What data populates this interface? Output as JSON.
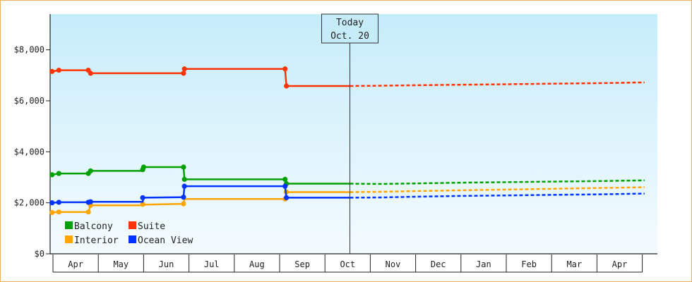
{
  "chart_data": {
    "type": "line",
    "title": "",
    "xlabel": "",
    "ylabel": "",
    "ylim": [
      0,
      9400
    ],
    "y_ticks": [
      {
        "value": 0,
        "label": "$0"
      },
      {
        "value": 2000,
        "label": "$2,000"
      },
      {
        "value": 4000,
        "label": "$4,000"
      },
      {
        "value": 6000,
        "label": "$6,000"
      },
      {
        "value": 8000,
        "label": "$8,000"
      }
    ],
    "x_months": [
      "Apr",
      "May",
      "Jun",
      "Jul",
      "Aug",
      "Sep",
      "Oct",
      "Nov",
      "Dec",
      "Jan",
      "Feb",
      "Mar",
      "Apr"
    ],
    "x_range_months": [
      -0.05,
      13.05
    ],
    "today": {
      "line1": "Today",
      "line2": "Oct. 20",
      "x": 6.55
    },
    "grid": false,
    "legend_position": "bottom-left",
    "series": [
      {
        "name": "Balcony",
        "color": "#00a000",
        "history": [
          [
            -0.02,
            3100
          ],
          [
            0.13,
            3150
          ],
          [
            0.78,
            3150
          ],
          [
            0.83,
            3250
          ],
          [
            1.98,
            3250
          ],
          [
            2.0,
            3400
          ],
          [
            2.88,
            3400
          ],
          [
            2.9,
            2920
          ],
          [
            5.12,
            2920
          ],
          [
            5.15,
            2750
          ],
          [
            6.55,
            2750
          ]
        ],
        "history_points": [
          [
            -0.02,
            3100
          ],
          [
            0.13,
            3150
          ],
          [
            0.78,
            3150
          ],
          [
            0.83,
            3250
          ],
          [
            1.98,
            3300
          ],
          [
            2.0,
            3400
          ],
          [
            2.88,
            3400
          ],
          [
            2.9,
            2920
          ],
          [
            5.12,
            2920
          ],
          [
            5.15,
            2750
          ]
        ],
        "forecast": [
          [
            6.55,
            2750
          ],
          [
            7.2,
            2740
          ],
          [
            8.0,
            2760
          ],
          [
            9.0,
            2790
          ],
          [
            10.0,
            2810
          ],
          [
            11.0,
            2830
          ],
          [
            12.0,
            2850
          ],
          [
            13.05,
            2880
          ]
        ]
      },
      {
        "name": "Suite",
        "color": "#ff3300",
        "history": [
          [
            -0.02,
            7150
          ],
          [
            0.13,
            7200
          ],
          [
            0.78,
            7200
          ],
          [
            0.83,
            7080
          ],
          [
            2.88,
            7080
          ],
          [
            2.9,
            7250
          ],
          [
            5.12,
            7250
          ],
          [
            5.15,
            6580
          ],
          [
            6.55,
            6580
          ]
        ],
        "history_points": [
          [
            -0.02,
            7150
          ],
          [
            0.13,
            7200
          ],
          [
            0.78,
            7200
          ],
          [
            0.83,
            7080
          ],
          [
            2.88,
            7080
          ],
          [
            2.9,
            7250
          ],
          [
            5.12,
            7250
          ],
          [
            5.15,
            6580
          ]
        ],
        "forecast": [
          [
            6.55,
            6580
          ],
          [
            7.2,
            6590
          ],
          [
            8.0,
            6610
          ],
          [
            9.0,
            6630
          ],
          [
            10.0,
            6650
          ],
          [
            11.0,
            6670
          ],
          [
            12.0,
            6690
          ],
          [
            13.05,
            6720
          ]
        ]
      },
      {
        "name": "Interior",
        "color": "#ffa500",
        "history": [
          [
            -0.02,
            1620
          ],
          [
            0.13,
            1640
          ],
          [
            0.78,
            1640
          ],
          [
            0.83,
            1900
          ],
          [
            1.98,
            1900
          ],
          [
            2.0,
            1930
          ],
          [
            2.88,
            1960
          ],
          [
            2.9,
            2150
          ],
          [
            5.12,
            2150
          ],
          [
            5.15,
            2420
          ],
          [
            6.55,
            2420
          ]
        ],
        "history_points": [
          [
            -0.02,
            1620
          ],
          [
            0.13,
            1640
          ],
          [
            0.78,
            1640
          ],
          [
            0.83,
            1900
          ],
          [
            1.98,
            1940
          ],
          [
            2.88,
            1960
          ],
          [
            5.12,
            2150
          ],
          [
            5.15,
            2420
          ]
        ],
        "forecast": [
          [
            6.55,
            2420
          ],
          [
            7.2,
            2430
          ],
          [
            8.0,
            2460
          ],
          [
            9.0,
            2490
          ],
          [
            10.0,
            2520
          ],
          [
            11.0,
            2550
          ],
          [
            12.0,
            2580
          ],
          [
            13.05,
            2610
          ]
        ]
      },
      {
        "name": "Ocean View",
        "color": "#0033ff",
        "history": [
          [
            -0.02,
            2000
          ],
          [
            0.13,
            2020
          ],
          [
            0.78,
            2020
          ],
          [
            0.83,
            2040
          ],
          [
            1.98,
            2040
          ],
          [
            2.0,
            2200
          ],
          [
            2.88,
            2220
          ],
          [
            2.9,
            2650
          ],
          [
            5.12,
            2650
          ],
          [
            5.15,
            2200
          ],
          [
            6.55,
            2200
          ]
        ],
        "history_points": [
          [
            -0.02,
            2000
          ],
          [
            0.13,
            2020
          ],
          [
            0.78,
            2020
          ],
          [
            0.83,
            2040
          ],
          [
            1.98,
            2200
          ],
          [
            2.88,
            2220
          ],
          [
            2.9,
            2650
          ],
          [
            5.12,
            2650
          ],
          [
            5.15,
            2200
          ]
        ],
        "forecast": [
          [
            6.55,
            2200
          ],
          [
            7.2,
            2210
          ],
          [
            8.0,
            2240
          ],
          [
            9.0,
            2270
          ],
          [
            10.0,
            2290
          ],
          [
            11.0,
            2310
          ],
          [
            12.0,
            2330
          ],
          [
            13.05,
            2360
          ]
        ]
      }
    ]
  }
}
